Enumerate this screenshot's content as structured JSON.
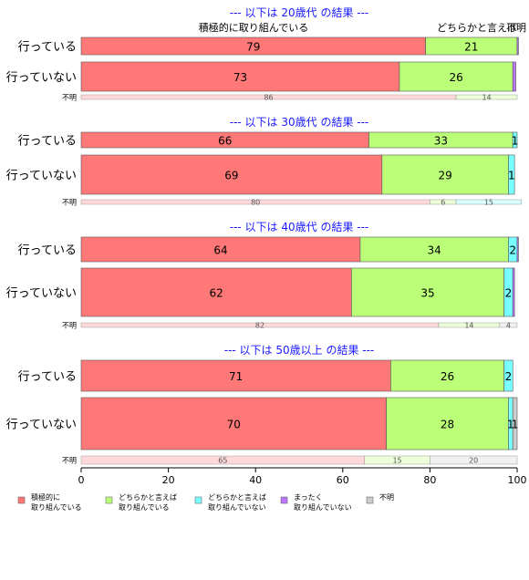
{
  "chart_data": {
    "type": "bar",
    "orientation": "horizontal",
    "stacked": "percent",
    "xlim": [
      0,
      100
    ],
    "x_ticks": [
      "0",
      "20",
      "40",
      "60",
      "80",
      "100"
    ],
    "top_labels": [
      "積極的に取り組んでいる",
      "どちらかと言えば",
      "不明"
    ],
    "categories_legend": [
      "積極的に\n取り組んでいる",
      "どちらかと言えば\n取り組んでいる",
      "どちらかと言えば\n取り組んでいない",
      "まったく\n取り組んでいない",
      "不明"
    ],
    "colors": [
      "#ff7878",
      "#bbff78",
      "#78ffff",
      "#bb78ff",
      "#cccccc"
    ],
    "panels": [
      {
        "title": "--- 以下は 20歳代 の結果 ---",
        "rows": [
          {
            "label": "行っている",
            "values": [
              79,
              21,
              0,
              0.3,
              0
            ],
            "labels": [
              "79",
              "21",
              "",
              "",
              ""
            ]
          },
          {
            "label": "行っていない",
            "values": [
              73,
              26,
              0,
              0.7,
              0
            ],
            "labels": [
              "73",
              "26",
              "",
              "",
              ""
            ]
          }
        ],
        "unknown": {
          "label": "不明",
          "values": [
            86,
            14,
            0,
            0,
            0
          ],
          "labels": [
            "86",
            "14",
            "",
            "",
            ""
          ]
        }
      },
      {
        "title": "--- 以下は 30歳代 の結果 ---",
        "rows": [
          {
            "label": "行っている",
            "values": [
              66,
              33,
              1,
              0,
              0
            ],
            "labels": [
              "66",
              "33",
              "1",
              "",
              ""
            ]
          },
          {
            "label": "行っていない",
            "values": [
              69,
              29,
              1.4,
              0,
              0
            ],
            "labels": [
              "69",
              "29",
              "1",
              "",
              ""
            ]
          }
        ],
        "unknown": {
          "label": "不明",
          "values": [
            80,
            6,
            15,
            0,
            0
          ],
          "labels": [
            "80",
            "6",
            "15",
            "",
            ""
          ]
        }
      },
      {
        "title": "--- 以下は 40歳代 の結果 ---",
        "rows": [
          {
            "label": "行っている",
            "values": [
              64,
              34,
              2,
              0.3,
              0
            ],
            "labels": [
              "64",
              "34",
              "2",
              "",
              ""
            ]
          },
          {
            "label": "行っていない",
            "values": [
              62,
              35,
              2,
              0.4,
              0
            ],
            "labels": [
              "62",
              "35",
              "2",
              "",
              ""
            ]
          }
        ],
        "unknown": {
          "label": "不明",
          "values": [
            82,
            14,
            0,
            0,
            4
          ],
          "labels": [
            "82",
            "14",
            "",
            "",
            "4"
          ]
        }
      },
      {
        "title": "--- 以下は 50歳以上 の結果 ---",
        "rows": [
          {
            "label": "行っている",
            "values": [
              71,
              26,
              2,
              0,
              0
            ],
            "labels": [
              "71",
              "26",
              "2",
              "",
              ""
            ]
          },
          {
            "label": "行っていない",
            "values": [
              70,
              28,
              1,
              0,
              1
            ],
            "labels": [
              "70",
              "28",
              "1",
              "",
              "1"
            ]
          }
        ],
        "unknown": {
          "label": "不明",
          "values": [
            65,
            15,
            0,
            0,
            20
          ],
          "labels": [
            "65",
            "15",
            "",
            "",
            "20"
          ]
        }
      }
    ]
  }
}
